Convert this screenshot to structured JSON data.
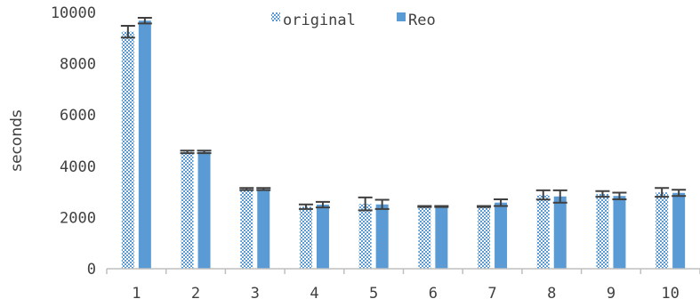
{
  "chart_data": {
    "type": "bar",
    "title": "",
    "xlabel": "",
    "ylabel": "seconds",
    "ylim": [
      0,
      10000
    ],
    "yticks": [
      0,
      2000,
      4000,
      6000,
      8000,
      10000
    ],
    "grid": false,
    "legend_position": "top-center",
    "categories": [
      "1",
      "2",
      "3",
      "4",
      "5",
      "6",
      "7",
      "8",
      "9",
      "10"
    ],
    "series": [
      {
        "name": "original",
        "pattern": "checker",
        "color": "#5B9BD5",
        "values": [
          9250,
          4560,
          3110,
          2420,
          2530,
          2430,
          2430,
          2880,
          2920,
          2980
        ],
        "errors": [
          230,
          50,
          40,
          90,
          250,
          20,
          20,
          180,
          110,
          170
        ]
      },
      {
        "name": "Reo",
        "pattern": "solid",
        "color": "#5B9BD5",
        "values": [
          9680,
          4560,
          3110,
          2500,
          2510,
          2430,
          2580,
          2820,
          2840,
          2960
        ],
        "errors": [
          110,
          50,
          40,
          110,
          180,
          20,
          130,
          240,
          130,
          120
        ]
      }
    ],
    "error_bar_color": "#404040",
    "axis_color": "#bfbfbf"
  }
}
